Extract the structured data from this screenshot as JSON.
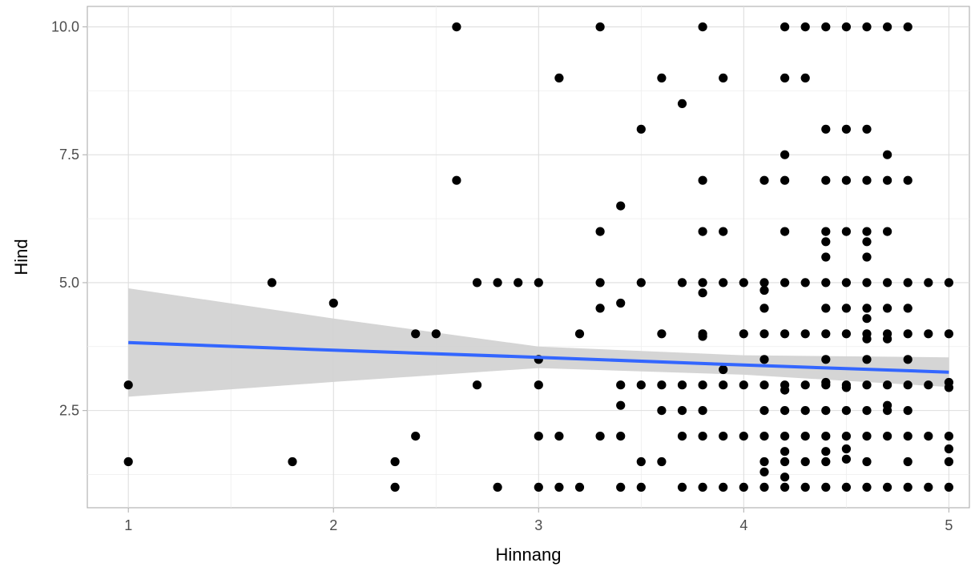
{
  "chart_data": {
    "type": "scatter",
    "title": "",
    "xlabel": "Hinnang",
    "ylabel": "Hind",
    "xlim": [
      0.8,
      5.1
    ],
    "ylim": [
      0.6,
      10.4
    ],
    "xticks": [
      1,
      2,
      3,
      4,
      5
    ],
    "xtick_labels": [
      "1",
      "2",
      "3",
      "4",
      "5"
    ],
    "yticks": [
      2.5,
      5.0,
      7.5,
      10.0
    ],
    "ytick_labels": [
      "2.5",
      "5.0",
      "7.5",
      "10.0"
    ],
    "grid": true,
    "legend": "none",
    "point_color": "#000000",
    "smooth": {
      "method": "linear",
      "line_color": "#3366FF",
      "band_color": "#D3D3D3",
      "x": [
        1,
        2,
        3,
        4,
        5
      ],
      "fit": [
        3.83,
        3.68,
        3.54,
        3.39,
        3.25
      ],
      "lower": [
        2.77,
        3.06,
        3.33,
        3.2,
        2.96
      ],
      "upper": [
        4.89,
        4.3,
        3.75,
        3.58,
        3.54
      ]
    },
    "points": [
      [
        1.0,
        3.0
      ],
      [
        1.0,
        1.5
      ],
      [
        1.7,
        5.0
      ],
      [
        1.8,
        1.5
      ],
      [
        2.0,
        4.6
      ],
      [
        2.3,
        1.5
      ],
      [
        2.3,
        1.0
      ],
      [
        2.4,
        4.0
      ],
      [
        2.4,
        2.0
      ],
      [
        2.5,
        4.0
      ],
      [
        2.6,
        10.0
      ],
      [
        2.6,
        7.0
      ],
      [
        2.7,
        5.0
      ],
      [
        2.7,
        3.0
      ],
      [
        2.8,
        5.0
      ],
      [
        2.8,
        1.0
      ],
      [
        2.9,
        5.0
      ],
      [
        3.0,
        5.0
      ],
      [
        3.0,
        3.5
      ],
      [
        3.0,
        3.0
      ],
      [
        3.0,
        2.0
      ],
      [
        3.0,
        1.0
      ],
      [
        3.1,
        9.0
      ],
      [
        3.1,
        2.0
      ],
      [
        3.1,
        1.0
      ],
      [
        3.2,
        4.0
      ],
      [
        3.2,
        1.0
      ],
      [
        3.3,
        10.0
      ],
      [
        3.3,
        6.0
      ],
      [
        3.3,
        5.0
      ],
      [
        3.3,
        4.5
      ],
      [
        3.3,
        2.0
      ],
      [
        3.4,
        6.5
      ],
      [
        3.4,
        4.6
      ],
      [
        3.4,
        3.0
      ],
      [
        3.4,
        2.6
      ],
      [
        3.4,
        2.0
      ],
      [
        3.4,
        1.0
      ],
      [
        3.5,
        8.0
      ],
      [
        3.5,
        5.0
      ],
      [
        3.5,
        3.0
      ],
      [
        3.5,
        1.5
      ],
      [
        3.5,
        1.0
      ],
      [
        3.6,
        9.0
      ],
      [
        3.6,
        4.0
      ],
      [
        3.6,
        3.0
      ],
      [
        3.6,
        2.5
      ],
      [
        3.6,
        1.5
      ],
      [
        3.7,
        8.5
      ],
      [
        3.7,
        5.0
      ],
      [
        3.7,
        3.0
      ],
      [
        3.7,
        2.5
      ],
      [
        3.7,
        2.0
      ],
      [
        3.7,
        1.0
      ],
      [
        3.8,
        10.0
      ],
      [
        3.8,
        7.0
      ],
      [
        3.8,
        6.0
      ],
      [
        3.8,
        5.0
      ],
      [
        3.8,
        4.8
      ],
      [
        3.8,
        4.0
      ],
      [
        3.8,
        3.95
      ],
      [
        3.8,
        3.0
      ],
      [
        3.8,
        2.5
      ],
      [
        3.8,
        2.0
      ],
      [
        3.8,
        1.0
      ],
      [
        3.9,
        9.0
      ],
      [
        3.9,
        6.0
      ],
      [
        3.9,
        5.0
      ],
      [
        3.9,
        3.3
      ],
      [
        3.9,
        3.0
      ],
      [
        3.9,
        2.0
      ],
      [
        3.9,
        1.0
      ],
      [
        4.0,
        5.0
      ],
      [
        4.0,
        4.0
      ],
      [
        4.0,
        3.0
      ],
      [
        4.0,
        2.0
      ],
      [
        4.0,
        1.0
      ],
      [
        4.1,
        7.0
      ],
      [
        4.1,
        5.0
      ],
      [
        4.1,
        4.85
      ],
      [
        4.1,
        4.5
      ],
      [
        4.1,
        4.0
      ],
      [
        4.1,
        3.5
      ],
      [
        4.1,
        3.0
      ],
      [
        4.1,
        2.5
      ],
      [
        4.1,
        2.0
      ],
      [
        4.1,
        1.5
      ],
      [
        4.1,
        1.3
      ],
      [
        4.1,
        1.0
      ],
      [
        4.2,
        10.0
      ],
      [
        4.2,
        9.0
      ],
      [
        4.2,
        7.5
      ],
      [
        4.2,
        7.0
      ],
      [
        4.2,
        6.0
      ],
      [
        4.2,
        5.0
      ],
      [
        4.2,
        4.0
      ],
      [
        4.2,
        3.0
      ],
      [
        4.2,
        2.9
      ],
      [
        4.2,
        2.5
      ],
      [
        4.2,
        2.0
      ],
      [
        4.2,
        1.7
      ],
      [
        4.2,
        1.5
      ],
      [
        4.2,
        1.2
      ],
      [
        4.2,
        1.0
      ],
      [
        4.3,
        10.0
      ],
      [
        4.3,
        9.0
      ],
      [
        4.3,
        5.0
      ],
      [
        4.3,
        4.0
      ],
      [
        4.3,
        3.0
      ],
      [
        4.3,
        2.5
      ],
      [
        4.3,
        2.0
      ],
      [
        4.3,
        1.5
      ],
      [
        4.3,
        1.0
      ],
      [
        4.4,
        10.0
      ],
      [
        4.4,
        8.0
      ],
      [
        4.4,
        7.0
      ],
      [
        4.4,
        6.0
      ],
      [
        4.4,
        5.8
      ],
      [
        4.4,
        5.5
      ],
      [
        4.4,
        5.0
      ],
      [
        4.4,
        4.5
      ],
      [
        4.4,
        4.0
      ],
      [
        4.4,
        3.5
      ],
      [
        4.4,
        3.05
      ],
      [
        4.4,
        3.0
      ],
      [
        4.4,
        2.5
      ],
      [
        4.4,
        2.0
      ],
      [
        4.4,
        1.7
      ],
      [
        4.4,
        1.5
      ],
      [
        4.4,
        1.0
      ],
      [
        4.5,
        10.0
      ],
      [
        4.5,
        8.0
      ],
      [
        4.5,
        7.0
      ],
      [
        4.5,
        6.0
      ],
      [
        4.5,
        5.0
      ],
      [
        4.5,
        4.5
      ],
      [
        4.5,
        4.0
      ],
      [
        4.5,
        3.0
      ],
      [
        4.5,
        2.95
      ],
      [
        4.5,
        2.5
      ],
      [
        4.5,
        2.0
      ],
      [
        4.5,
        1.75
      ],
      [
        4.5,
        1.55
      ],
      [
        4.5,
        1.0
      ],
      [
        4.6,
        10.0
      ],
      [
        4.6,
        8.0
      ],
      [
        4.6,
        7.0
      ],
      [
        4.6,
        6.0
      ],
      [
        4.6,
        5.8
      ],
      [
        4.6,
        5.5
      ],
      [
        4.6,
        5.0
      ],
      [
        4.6,
        4.5
      ],
      [
        4.6,
        4.3
      ],
      [
        4.6,
        4.0
      ],
      [
        4.6,
        3.9
      ],
      [
        4.6,
        3.5
      ],
      [
        4.6,
        3.0
      ],
      [
        4.6,
        2.5
      ],
      [
        4.6,
        2.0
      ],
      [
        4.6,
        1.5
      ],
      [
        4.6,
        1.0
      ],
      [
        4.7,
        10.0
      ],
      [
        4.7,
        7.5
      ],
      [
        4.7,
        7.0
      ],
      [
        4.7,
        6.0
      ],
      [
        4.7,
        5.0
      ],
      [
        4.7,
        4.5
      ],
      [
        4.7,
        4.0
      ],
      [
        4.7,
        3.9
      ],
      [
        4.7,
        3.0
      ],
      [
        4.7,
        2.6
      ],
      [
        4.7,
        2.5
      ],
      [
        4.7,
        2.0
      ],
      [
        4.7,
        1.0
      ],
      [
        4.8,
        10.0
      ],
      [
        4.8,
        7.0
      ],
      [
        4.8,
        5.0
      ],
      [
        4.8,
        4.5
      ],
      [
        4.8,
        4.0
      ],
      [
        4.8,
        3.5
      ],
      [
        4.8,
        3.0
      ],
      [
        4.8,
        2.5
      ],
      [
        4.8,
        2.0
      ],
      [
        4.8,
        1.5
      ],
      [
        4.8,
        1.0
      ],
      [
        4.9,
        5.0
      ],
      [
        4.9,
        4.0
      ],
      [
        4.9,
        3.0
      ],
      [
        4.9,
        2.0
      ],
      [
        4.9,
        1.0
      ],
      [
        5.0,
        5.0
      ],
      [
        5.0,
        4.0
      ],
      [
        5.0,
        3.05
      ],
      [
        5.0,
        2.95
      ],
      [
        5.0,
        2.0
      ],
      [
        5.0,
        1.75
      ],
      [
        5.0,
        1.5
      ],
      [
        5.0,
        1.0
      ]
    ]
  }
}
